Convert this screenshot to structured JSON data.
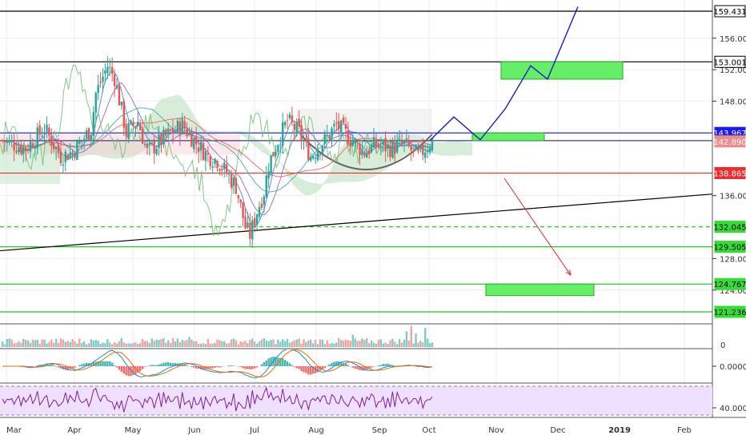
{
  "chart_data": {
    "type": "candlestick",
    "x_axis": {
      "labels": [
        "Mar",
        "Apr",
        "May",
        "Jun",
        "Jul",
        "Aug",
        "Sep",
        "Oct",
        "Nov",
        "Dec",
        "2019",
        "Feb"
      ],
      "bold_label": "2019"
    },
    "price_axis": {
      "ticks": [
        "156.000",
        "152.000",
        "148.000",
        "136.000",
        "128.000",
        "124.000"
      ],
      "ylim": [
        119,
        161
      ]
    },
    "price_levels": [
      {
        "value": "159.431",
        "value_num": 159.431,
        "style": "solid",
        "line_color": "#000000",
        "badge_bg": "#ffffff",
        "badge_fg": "#000000",
        "badge_border": "#000000"
      },
      {
        "value": "153.001",
        "value_num": 153.001,
        "style": "solid",
        "line_color": "#000000",
        "badge_bg": "#ffffff",
        "badge_fg": "#000000",
        "badge_border": "#000000"
      },
      {
        "value": "143.967",
        "value_num": 143.967,
        "style": "solid",
        "line_color": "#2a2aff",
        "badge_bg": "#1a1aff",
        "badge_fg": "#ffffff",
        "badge_border": "#1a1aff"
      },
      {
        "value": "142.990",
        "value_num": 142.99,
        "style": "solid",
        "line_color": "#3a3a9a",
        "badge_bg": "#2b2b8f",
        "badge_fg": "#ffffff",
        "badge_border": "#2b2b8f"
      },
      {
        "value": "142.890",
        "value_num": 142.89,
        "style": "none",
        "line_color": "#ef5350",
        "badge_bg": "#f28b8b",
        "badge_fg": "#ffffff",
        "badge_border": "#f28b8b"
      },
      {
        "value": "138.865",
        "value_num": 138.865,
        "style": "solid",
        "line_color": "#ef2b2b",
        "badge_bg": "#ef2b2b",
        "badge_fg": "#ffffff",
        "badge_border": "#ef2b2b"
      },
      {
        "value": "132.045",
        "value_num": 132.045,
        "style": "dashed",
        "line_color": "#22cc22",
        "badge_bg": "#33dd33",
        "badge_fg": "#000000",
        "badge_border": "#33dd33"
      },
      {
        "value": "129.505",
        "value_num": 129.505,
        "style": "solid",
        "line_color": "#22cc22",
        "badge_bg": "#33dd33",
        "badge_fg": "#000000",
        "badge_border": "#33dd33"
      },
      {
        "value": "124.767",
        "value_num": 124.767,
        "style": "solid",
        "line_color": "#22cc22",
        "badge_bg": "#33dd33",
        "badge_fg": "#000000",
        "badge_border": "#33dd33"
      },
      {
        "value": "121.236",
        "value_num": 121.236,
        "style": "solid",
        "line_color": "#22cc22",
        "badge_bg": "#33dd33",
        "badge_fg": "#000000",
        "badge_border": "#33dd33"
      }
    ],
    "macd_axis": {
      "tick": "0.0000"
    },
    "rsi_axis": {
      "tick": "40.0000"
    },
    "volume_axis": {
      "tick": "0"
    },
    "colors": {
      "up": "#26a69a",
      "down": "#ef5350",
      "projection": "#1a1acc",
      "forecast_arrow": "#ef2b2b",
      "target_box": "#66ee66",
      "trendline": "#000000",
      "cloud_green": "#c8e6c9",
      "cloud_red": "#ffcdd2",
      "rsi_fill": "#f0e0ff",
      "rsi_line": "#7b1fa2"
    },
    "projection_path": [
      [
        537,
        143.0
      ],
      [
        567,
        146.0
      ],
      [
        600,
        143.1
      ],
      [
        631,
        147.0
      ],
      [
        663,
        152.5
      ],
      [
        684,
        150.8
      ],
      [
        722,
        160.0
      ]
    ],
    "target_zones": [
      {
        "x0": 626,
        "x1": 778,
        "y_top": 153.0,
        "y_bottom": 150.8
      },
      {
        "x0": 590,
        "x1": 680,
        "y_top": 143.967,
        "y_bottom": 142.99
      },
      {
        "x0": 607,
        "x1": 742,
        "y_top": 124.767,
        "y_bottom": 123.3
      }
    ],
    "forecast_arrow": {
      "from": [
        630,
        138.2
      ],
      "to": [
        713,
        125.9
      ]
    },
    "trendline": {
      "from": [
        0,
        129.0
      ],
      "to": [
        890,
        136.2
      ]
    },
    "cup_arc": {
      "x0": 375,
      "x1": 540,
      "y_top": 143.8,
      "y_bottom": 139.2
    },
    "candles": {
      "count": 185,
      "x_start": 3,
      "x_end": 540,
      "anchors": [
        [
          0,
          143.0
        ],
        [
          10,
          142.0
        ],
        [
          18,
          144.5
        ],
        [
          25,
          141.0
        ],
        [
          30,
          141.5
        ],
        [
          38,
          144.5
        ],
        [
          40,
          149.0
        ],
        [
          45,
          152.5
        ],
        [
          48,
          151.0
        ],
        [
          53,
          144.0
        ],
        [
          58,
          145.5
        ],
        [
          62,
          141.5
        ],
        [
          72,
          144.0
        ],
        [
          77,
          145.0
        ],
        [
          82,
          143.0
        ],
        [
          88,
          141.0
        ],
        [
          92,
          140.5
        ],
        [
          100,
          137.2
        ],
        [
          104,
          132.0
        ],
        [
          106,
          131.0
        ],
        [
          109,
          134.0
        ],
        [
          112,
          136.5
        ],
        [
          114,
          140.0
        ],
        [
          118,
          143.0
        ],
        [
          122,
          145.5
        ],
        [
          127,
          144.0
        ],
        [
          132,
          141.0
        ],
        [
          138,
          143.0
        ],
        [
          143,
          145.0
        ],
        [
          148,
          143.5
        ],
        [
          155,
          141.5
        ],
        [
          160,
          142.5
        ],
        [
          166,
          142.0
        ],
        [
          172,
          142.5
        ],
        [
          178,
          141.0
        ],
        [
          184,
          143.0
        ]
      ]
    },
    "volume": {
      "count": 185,
      "spikes": [
        [
          80,
          0.45
        ],
        [
          150,
          0.55
        ],
        [
          173,
          0.7
        ],
        [
          175,
          0.95
        ],
        [
          177,
          0.6
        ],
        [
          181,
          0.85
        ]
      ]
    }
  }
}
